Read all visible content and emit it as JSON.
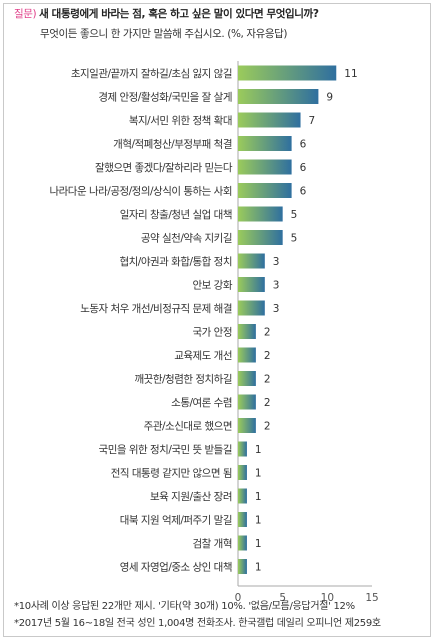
{
  "question": {
    "prefix": "질문)",
    "text": "새 대통령에게 바라는 점, 혹은 하고 싶은 말이 있다면 무엇입니까?",
    "sub": "무엇이든 좋으니 한 가지만 말씀해 주십시오. (%, 자유응답)"
  },
  "chart_data": {
    "type": "bar",
    "orientation": "horizontal",
    "categories": [
      "초지일관/끝까지 잘하길/초심 잃지 않길",
      "경제 안정/활성화/국민을 잘 살게",
      "복지/서민 위한 정책 확대",
      "개혁/적폐청산/부정부패 척결",
      "잘했으면 좋겠다/잘하리라 믿는다",
      "나라다운 나라/공정/정의/상식이 통하는 사회",
      "일자리 창출/청년 실업 대책",
      "공약 실천/약속 지키길",
      "협치/야권과 화합/통합 정치",
      "안보 강화",
      "노동자 처우 개선/비정규직 문제 해결",
      "국가 안정",
      "교육제도 개선",
      "깨끗한/청렴한 정치하길",
      "소통/여론 수렴",
      "주관/소신대로 했으면",
      "국민을 위한 정치/국민 뜻 받들길",
      "전직 대통령 같지만 않으면 됨",
      "보육 지원/출산 장려",
      "대북 지원 억제/퍼주기 말길",
      "검찰 개혁",
      "영세 자영업/중소 상인 대책"
    ],
    "values": [
      11,
      9,
      7,
      6,
      6,
      6,
      5,
      5,
      3,
      3,
      3,
      2,
      2,
      2,
      2,
      2,
      1,
      1,
      1,
      1,
      1,
      1
    ],
    "xlim": [
      0,
      15
    ],
    "xticks": [
      0,
      5,
      10,
      15
    ],
    "grid": false,
    "colors": {
      "bar_start": "#9bcb5b",
      "bar_end": "#2f6f9f",
      "axis": "#aaaaaa",
      "label": "#333333"
    }
  },
  "footnotes": [
    "*10사례 이상 응답된 22개만 제시. '기타(약 30개) 10%. '없음/모름/응답거절' 12%",
    "*2017년 5월 16~18일 전국 성인 1,004명 전화조사. 한국갤럽 데일리 오피니언 제259호"
  ]
}
